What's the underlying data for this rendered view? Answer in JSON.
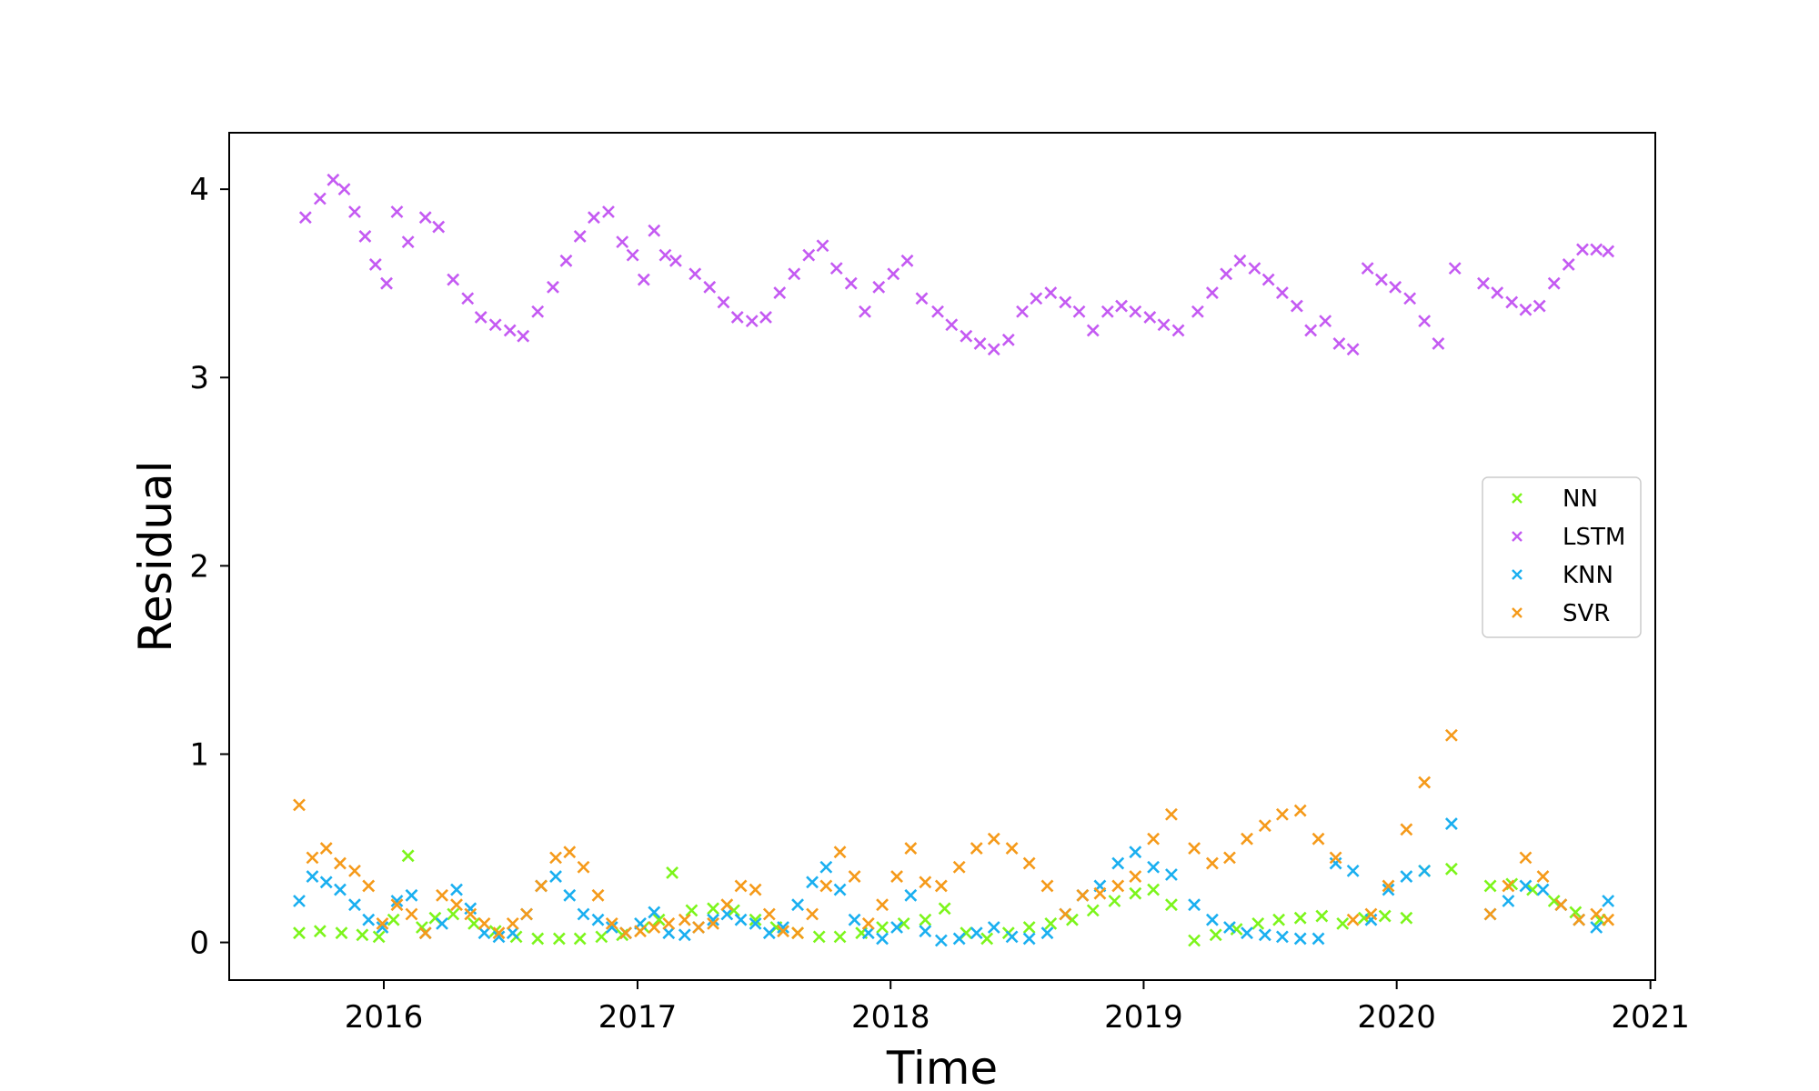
{
  "chart_data": {
    "type": "scatter",
    "title": "",
    "xlabel": "Time",
    "ylabel": "Residual",
    "xlim": [
      "2015-05-23",
      "2021-01-08"
    ],
    "ylim": [
      -0.2,
      4.3
    ],
    "x_ticks": [
      "2016",
      "2017",
      "2018",
      "2019",
      "2020",
      "2021"
    ],
    "y_ticks": [
      "0",
      "1",
      "2",
      "3",
      "4"
    ],
    "grid": false,
    "legend_position": "center-right",
    "marker": "x",
    "series": [
      {
        "name": "NN",
        "color": "#7cf51b",
        "x": [
          "2015-09-01",
          "2015-10-01",
          "2015-11-01",
          "2015-12-01",
          "2015-12-25",
          "2016-01-15",
          "2016-02-05",
          "2016-02-25",
          "2016-03-15",
          "2016-04-10",
          "2016-05-10",
          "2016-06-10",
          "2016-07-10",
          "2016-08-10",
          "2016-09-10",
          "2016-10-10",
          "2016-11-10",
          "2016-12-10",
          "2017-01-10",
          "2017-02-01",
          "2017-02-20",
          "2017-03-20",
          "2017-04-20",
          "2017-05-20",
          "2017-06-20",
          "2017-07-20",
          "2017-08-20",
          "2017-09-20",
          "2017-10-20",
          "2017-11-20",
          "2017-12-20",
          "2018-01-20",
          "2018-02-20",
          "2018-03-20",
          "2018-04-20",
          "2018-05-20",
          "2018-06-20",
          "2018-07-20",
          "2018-08-20",
          "2018-09-20",
          "2018-10-20",
          "2018-11-20",
          "2018-12-20",
          "2019-01-15",
          "2019-02-10",
          "2019-03-15",
          "2019-04-15",
          "2019-05-15",
          "2019-06-15",
          "2019-07-15",
          "2019-08-15",
          "2019-09-15",
          "2019-10-15",
          "2019-11-15",
          "2019-12-15",
          "2020-01-15",
          "2020-02-10",
          "2020-03-20",
          "2020-05-15",
          "2020-06-15",
          "2020-07-15",
          "2020-08-15",
          "2020-09-15",
          "2020-10-20"
        ],
        "y": [
          0.05,
          0.06,
          0.05,
          0.04,
          0.03,
          0.12,
          0.46,
          0.08,
          0.13,
          0.15,
          0.1,
          0.06,
          0.03,
          0.02,
          0.02,
          0.02,
          0.03,
          0.04,
          0.08,
          0.12,
          0.37,
          0.17,
          0.18,
          0.17,
          0.12,
          0.08,
          0.05,
          0.03,
          0.03,
          0.05,
          0.08,
          0.1,
          0.12,
          0.18,
          0.05,
          0.02,
          0.05,
          0.08,
          0.1,
          0.12,
          0.17,
          0.22,
          0.26,
          0.28,
          0.2,
          0.01,
          0.04,
          0.07,
          0.1,
          0.12,
          0.13,
          0.14,
          0.1,
          0.13,
          0.14,
          0.13,
          0.38,
          0.39,
          0.3,
          0.31,
          0.28,
          0.22,
          0.16,
          0.12
        ]
      },
      {
        "name": "LSTM",
        "color": "#c45af2",
        "x": [
          "2015-09-10",
          "2015-10-01",
          "2015-10-20",
          "2015-11-05",
          "2015-11-20",
          "2015-12-05",
          "2015-12-20",
          "2016-01-05",
          "2016-01-20",
          "2016-02-05",
          "2016-03-01",
          "2016-03-20",
          "2016-04-10",
          "2016-05-01",
          "2016-05-20",
          "2016-06-10",
          "2016-07-01",
          "2016-07-20",
          "2016-08-10",
          "2016-09-01",
          "2016-09-20",
          "2016-10-10",
          "2016-10-30",
          "2016-11-20",
          "2016-12-10",
          "2016-12-25",
          "2017-01-10",
          "2017-01-25",
          "2017-02-10",
          "2017-02-25",
          "2017-03-25",
          "2017-04-15",
          "2017-05-05",
          "2017-05-25",
          "2017-06-15",
          "2017-07-05",
          "2017-07-25",
          "2017-08-15",
          "2017-09-05",
          "2017-09-25",
          "2017-10-15",
          "2017-11-05",
          "2017-11-25",
          "2017-12-15",
          "2018-01-05",
          "2018-01-25",
          "2018-02-15",
          "2018-03-10",
          "2018-03-30",
          "2018-04-20",
          "2018-05-10",
          "2018-05-30",
          "2018-06-20",
          "2018-07-10",
          "2018-07-30",
          "2018-08-20",
          "2018-09-10",
          "2018-09-30",
          "2018-10-20",
          "2018-11-10",
          "2018-11-30",
          "2018-12-20",
          "2019-01-10",
          "2019-01-30",
          "2019-02-20",
          "2019-03-20",
          "2019-04-10",
          "2019-04-30",
          "2019-05-20",
          "2019-06-10",
          "2019-06-30",
          "2019-07-20",
          "2019-08-10",
          "2019-08-30",
          "2019-09-20",
          "2019-10-10",
          "2019-10-30",
          "2019-11-20",
          "2019-12-10",
          "2019-12-30",
          "2020-01-20",
          "2020-02-10",
          "2020-03-01",
          "2020-03-25",
          "2020-05-05",
          "2020-05-25",
          "2020-06-15",
          "2020-07-05",
          "2020-07-25",
          "2020-08-15",
          "2020-09-05",
          "2020-09-25",
          "2020-10-15",
          "2020-11-01"
        ],
        "y": [
          3.85,
          3.95,
          4.05,
          4.0,
          3.88,
          3.75,
          3.6,
          3.5,
          3.88,
          3.72,
          3.85,
          3.8,
          3.52,
          3.42,
          3.32,
          3.28,
          3.25,
          3.22,
          3.35,
          3.48,
          3.62,
          3.75,
          3.85,
          3.88,
          3.72,
          3.65,
          3.52,
          3.78,
          3.65,
          3.62,
          3.55,
          3.48,
          3.4,
          3.32,
          3.3,
          3.32,
          3.45,
          3.55,
          3.65,
          3.7,
          3.58,
          3.5,
          3.35,
          3.48,
          3.55,
          3.62,
          3.42,
          3.35,
          3.28,
          3.22,
          3.18,
          3.15,
          3.2,
          3.35,
          3.42,
          3.45,
          3.4,
          3.35,
          3.25,
          3.35,
          3.38,
          3.35,
          3.32,
          3.28,
          3.25,
          3.35,
          3.45,
          3.55,
          3.62,
          3.58,
          3.52,
          3.45,
          3.38,
          3.25,
          3.3,
          3.18,
          3.15,
          3.58,
          3.52,
          3.48,
          3.42,
          3.3,
          3.18,
          3.58,
          3.5,
          3.45,
          3.4,
          3.36,
          3.38,
          3.5,
          3.6,
          3.68,
          3.68,
          3.67
        ]
      },
      {
        "name": "KNN",
        "color": "#1aaff0",
        "x": [
          "2015-09-01",
          "2015-09-20",
          "2015-10-10",
          "2015-10-30",
          "2015-11-20",
          "2015-12-10",
          "2015-12-30",
          "2016-01-20",
          "2016-02-10",
          "2016-03-01",
          "2016-03-25",
          "2016-04-15",
          "2016-05-05",
          "2016-05-25",
          "2016-06-15",
          "2016-07-05",
          "2016-07-25",
          "2016-08-15",
          "2016-09-05",
          "2016-09-25",
          "2016-10-15",
          "2016-11-05",
          "2016-11-25",
          "2016-12-15",
          "2017-01-05",
          "2017-01-25",
          "2017-02-15",
          "2017-03-10",
          "2017-03-30",
          "2017-04-20",
          "2017-05-10",
          "2017-05-30",
          "2017-06-20",
          "2017-07-10",
          "2017-07-30",
          "2017-08-20",
          "2017-09-10",
          "2017-09-30",
          "2017-10-20",
          "2017-11-10",
          "2017-11-30",
          "2017-12-20",
          "2018-01-10",
          "2018-01-30",
          "2018-02-20",
          "2018-03-15",
          "2018-04-10",
          "2018-05-05",
          "2018-05-30",
          "2018-06-25",
          "2018-07-20",
          "2018-08-15",
          "2018-09-10",
          "2018-10-05",
          "2018-10-30",
          "2018-11-25",
          "2018-12-20",
          "2019-01-15",
          "2019-02-10",
          "2019-03-15",
          "2019-04-10",
          "2019-05-05",
          "2019-05-30",
          "2019-06-25",
          "2019-07-20",
          "2019-08-15",
          "2019-09-10",
          "2019-10-05",
          "2019-10-30",
          "2019-11-25",
          "2019-12-20",
          "2020-01-15",
          "2020-02-10",
          "2020-03-20",
          "2020-05-15",
          "2020-06-10",
          "2020-07-05",
          "2020-07-30",
          "2020-08-25",
          "2020-09-20",
          "2020-10-15",
          "2020-11-01"
        ],
        "y": [
          0.22,
          0.35,
          0.32,
          0.28,
          0.2,
          0.12,
          0.08,
          0.22,
          0.25,
          0.05,
          0.1,
          0.28,
          0.18,
          0.05,
          0.03,
          0.05,
          0.15,
          0.3,
          0.35,
          0.25,
          0.15,
          0.12,
          0.08,
          0.05,
          0.1,
          0.16,
          0.05,
          0.04,
          0.08,
          0.12,
          0.15,
          0.12,
          0.1,
          0.05,
          0.08,
          0.2,
          0.32,
          0.4,
          0.28,
          0.12,
          0.05,
          0.02,
          0.08,
          0.25,
          0.06,
          0.01,
          0.02,
          0.05,
          0.08,
          0.03,
          0.02,
          0.05,
          0.15,
          0.25,
          0.3,
          0.42,
          0.48,
          0.4,
          0.36,
          0.2,
          0.12,
          0.08,
          0.05,
          0.04,
          0.03,
          0.02,
          0.02,
          0.42,
          0.38,
          0.12,
          0.28,
          0.35,
          0.38,
          0.63,
          0.15,
          0.22,
          0.3,
          0.28,
          0.2,
          0.12,
          0.08,
          0.22
        ]
      },
      {
        "name": "SVR",
        "color": "#f59a1a",
        "x": [
          "2015-09-01",
          "2015-09-20",
          "2015-10-10",
          "2015-10-30",
          "2015-11-20",
          "2015-12-10",
          "2015-12-30",
          "2016-01-20",
          "2016-02-10",
          "2016-03-01",
          "2016-03-25",
          "2016-04-15",
          "2016-05-05",
          "2016-05-25",
          "2016-06-15",
          "2016-07-05",
          "2016-07-25",
          "2016-08-15",
          "2016-09-05",
          "2016-09-25",
          "2016-10-15",
          "2016-11-05",
          "2016-11-25",
          "2016-12-15",
          "2017-01-05",
          "2017-01-25",
          "2017-02-15",
          "2017-03-10",
          "2017-03-30",
          "2017-04-20",
          "2017-05-10",
          "2017-05-30",
          "2017-06-20",
          "2017-07-10",
          "2017-07-30",
          "2017-08-20",
          "2017-09-10",
          "2017-09-30",
          "2017-10-20",
          "2017-11-10",
          "2017-11-30",
          "2017-12-20",
          "2018-01-10",
          "2018-01-30",
          "2018-02-20",
          "2018-03-15",
          "2018-04-10",
          "2018-05-05",
          "2018-05-30",
          "2018-06-25",
          "2018-07-20",
          "2018-08-15",
          "2018-09-10",
          "2018-10-05",
          "2018-10-30",
          "2018-11-25",
          "2018-12-20",
          "2019-01-15",
          "2019-02-10",
          "2019-03-15",
          "2019-04-10",
          "2019-05-05",
          "2019-05-30",
          "2019-06-25",
          "2019-07-20",
          "2019-08-15",
          "2019-09-10",
          "2019-10-05",
          "2019-10-30",
          "2019-11-25",
          "2019-12-20",
          "2020-01-15",
          "2020-02-10",
          "2020-03-20",
          "2020-05-15",
          "2020-06-10",
          "2020-07-05",
          "2020-07-30",
          "2020-08-25",
          "2020-09-20",
          "2020-10-15",
          "2020-11-01"
        ],
        "y": [
          0.73,
          0.45,
          0.5,
          0.42,
          0.38,
          0.3,
          0.1,
          0.2,
          0.15,
          0.05,
          0.25,
          0.2,
          0.15,
          0.1,
          0.05,
          0.1,
          0.15,
          0.3,
          0.45,
          0.48,
          0.4,
          0.25,
          0.1,
          0.05,
          0.06,
          0.08,
          0.1,
          0.12,
          0.08,
          0.1,
          0.2,
          0.3,
          0.28,
          0.15,
          0.06,
          0.05,
          0.15,
          0.3,
          0.48,
          0.35,
          0.1,
          0.2,
          0.35,
          0.5,
          0.32,
          0.3,
          0.4,
          0.5,
          0.55,
          0.5,
          0.42,
          0.3,
          0.15,
          0.25,
          0.26,
          0.3,
          0.35,
          0.55,
          0.68,
          0.5,
          0.42,
          0.45,
          0.55,
          0.62,
          0.68,
          0.7,
          0.55,
          0.45,
          0.12,
          0.15,
          0.3,
          0.6,
          0.85,
          1.1,
          0.15,
          0.3,
          0.45,
          0.35,
          0.2,
          0.12,
          0.15,
          0.12
        ]
      }
    ]
  }
}
